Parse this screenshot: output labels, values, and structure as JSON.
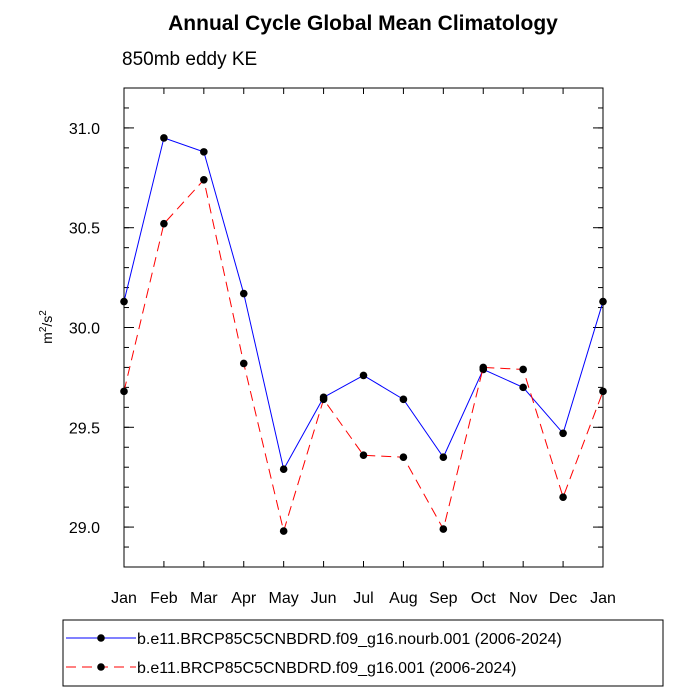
{
  "chart_data": {
    "type": "line",
    "title": "Annual Cycle Global Mean Climatology",
    "subtitle": "850mb eddy KE",
    "xlabel": "",
    "ylabel": "m2/s2",
    "ylabel_base": "m",
    "ylabel_exp": "2",
    "ylabel_sep": "/s",
    "ylim": [
      28.8,
      31.2
    ],
    "yticks": [
      29.0,
      29.5,
      30.0,
      30.5,
      31.0
    ],
    "ytick_labels": [
      "29.0",
      "29.5",
      "30.0",
      "30.5",
      "31.0"
    ],
    "categories": [
      "Jan",
      "Feb",
      "Mar",
      "Apr",
      "May",
      "Jun",
      "Jul",
      "Aug",
      "Sep",
      "Oct",
      "Nov",
      "Dec",
      "Jan"
    ],
    "series": [
      {
        "name": "b.e11.BRCP85C5CNBDRD.f09_g16.nourb.001 (2006-2024)",
        "color": "#0000ff",
        "dash": "solid",
        "values": [
          30.13,
          30.95,
          30.88,
          30.17,
          29.29,
          29.65,
          29.76,
          29.64,
          29.35,
          29.79,
          29.7,
          29.47,
          30.13
        ]
      },
      {
        "name": "b.e11.BRCP85C5CNBDRD.f09_g16.001 (2006-2024)",
        "color": "#ff0000",
        "dash": "dashed",
        "values": [
          29.68,
          30.52,
          30.74,
          29.82,
          28.98,
          29.64,
          29.36,
          29.35,
          28.99,
          29.8,
          29.79,
          29.15,
          29.68
        ]
      }
    ],
    "legend_position": "bottom"
  }
}
